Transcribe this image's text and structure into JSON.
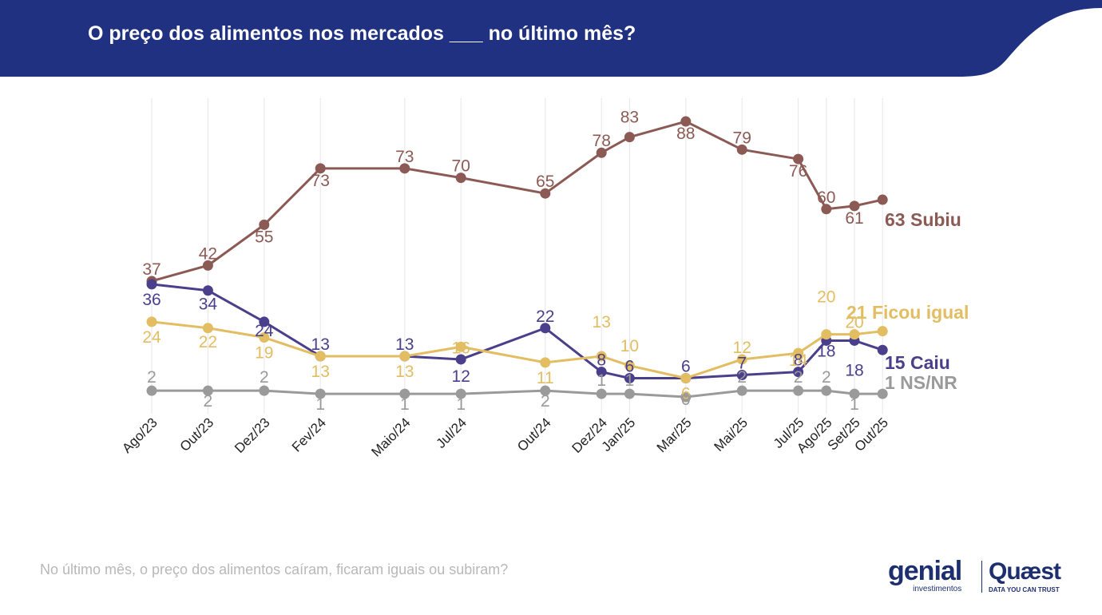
{
  "header": {
    "title": "O preço dos alimentos nos mercados ___ no último mês?",
    "color": "#1f3180"
  },
  "footer": {
    "question": "No último mês, o preço dos alimentos caíram, ficaram iguais ou subiram?",
    "logo_genial": "genial",
    "logo_genial_sub": "investimentos",
    "logo_quaest": "Quæst",
    "logo_quaest_sub": "DATA YOU CAN TRUST"
  },
  "chart_data": {
    "type": "line",
    "title": "O preço dos alimentos nos mercados ___ no último mês?",
    "xlabel": "",
    "ylabel": "",
    "ylim": [
      0,
      100
    ],
    "grid": "vertical",
    "legend": "end-of-line labels (right)",
    "x": [
      "Ago/23",
      "Out/23",
      "Dez/23",
      "Fev/24",
      "Maio/24",
      "Jul/24",
      "Out/24",
      "Dez/24",
      "Jan/25",
      "Mar/25",
      "Mai/25",
      "Jul/25",
      "Ago/25",
      "Set/25",
      "Out/25"
    ],
    "x_index": [
      0,
      2,
      4,
      6,
      9,
      11,
      14,
      16,
      17,
      19,
      21,
      23,
      24,
      25,
      26
    ],
    "series": [
      {
        "name": "Subiu",
        "end_label": "63 Subiu",
        "color": "#8c5a55",
        "values": [
          37,
          42,
          55,
          73,
          73,
          70,
          65,
          78,
          83,
          88,
          79,
          76,
          60,
          61,
          63
        ]
      },
      {
        "name": "Caiu",
        "end_label": "15 Caiu",
        "color": "#4a3f8a",
        "values": [
          36,
          34,
          24,
          13,
          13,
          12,
          22,
          8,
          6,
          6,
          7,
          8,
          18,
          18,
          15
        ]
      },
      {
        "name": "Ficou igual",
        "end_label": "21 Ficou igual",
        "color": "#e2bd62",
        "values": [
          24,
          22,
          19,
          13,
          13,
          16,
          11,
          13,
          10,
          6,
          12,
          14,
          20,
          20,
          21
        ]
      },
      {
        "name": "NS/NR",
        "end_label": "1 NS/NR",
        "color": "#9a9a9a",
        "values": [
          2,
          2,
          2,
          1,
          1,
          1,
          2,
          1,
          1,
          0,
          2,
          2,
          2,
          1,
          1
        ]
      }
    ]
  }
}
